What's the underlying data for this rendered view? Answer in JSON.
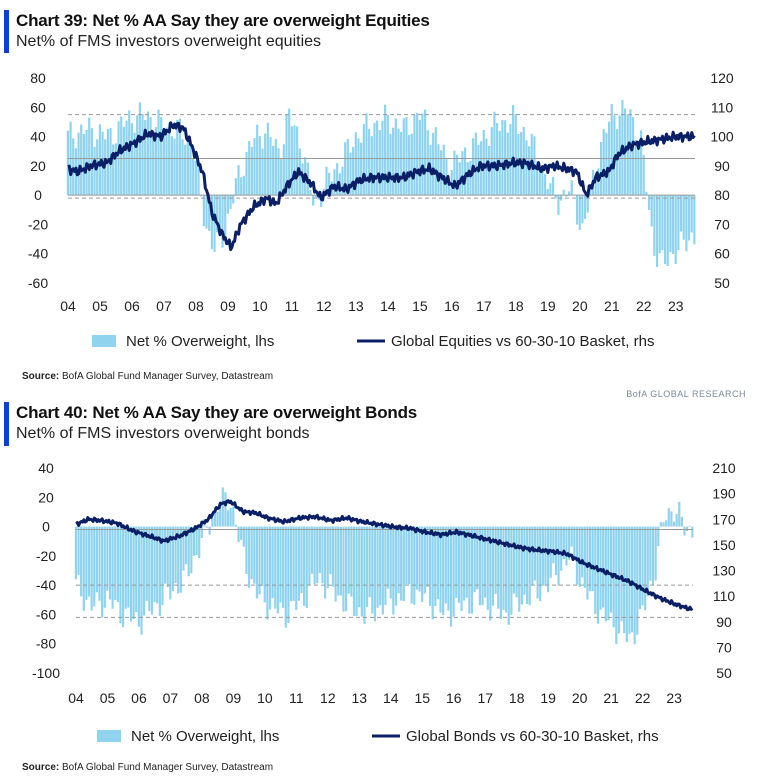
{
  "colors": {
    "bar": "#8fd3ee",
    "line": "#0a1f66",
    "accent": "#0b3fd6",
    "refline": "#9a9a9a"
  },
  "chart_data": [
    {
      "type": "bar+line",
      "title": "Chart 39: Net % AA Say they are overweight Equities",
      "subtitle": "Net% of FMS investors overweight equities",
      "x_ticks": [
        "04",
        "05",
        "06",
        "07",
        "08",
        "09",
        "10",
        "11",
        "12",
        "13",
        "14",
        "15",
        "16",
        "17",
        "18",
        "19",
        "20",
        "21",
        "22",
        "23"
      ],
      "x_range": [
        2004.0,
        2023.6
      ],
      "y_left": {
        "min": -60,
        "max": 80,
        "ticks": [
          "80",
          "60",
          "40",
          "20",
          "0",
          "-20",
          "-40",
          "-60"
        ]
      },
      "y_right": {
        "min": 50,
        "max": 120,
        "ticks": [
          "120",
          "110",
          "100",
          "90",
          "80",
          "70",
          "60",
          "50"
        ]
      },
      "ref_lines_lhs": [
        55,
        25,
        0,
        -2
      ],
      "bars_anchors": [
        [
          2004.0,
          40
        ],
        [
          2004.6,
          45
        ],
        [
          2005.3,
          40
        ],
        [
          2005.9,
          52
        ],
        [
          2006.4,
          55
        ],
        [
          2006.9,
          48
        ],
        [
          2007.4,
          45
        ],
        [
          2007.9,
          35
        ],
        [
          2008.3,
          -20
        ],
        [
          2008.6,
          -38
        ],
        [
          2008.9,
          -25
        ],
        [
          2009.3,
          10
        ],
        [
          2009.7,
          35
        ],
        [
          2010.2,
          45
        ],
        [
          2010.6,
          28
        ],
        [
          2010.9,
          55
        ],
        [
          2011.3,
          35
        ],
        [
          2011.7,
          -8
        ],
        [
          2012.1,
          10
        ],
        [
          2012.6,
          25
        ],
        [
          2013.0,
          40
        ],
        [
          2013.5,
          48
        ],
        [
          2014.0,
          52
        ],
        [
          2014.5,
          45
        ],
        [
          2015.0,
          55
        ],
        [
          2015.5,
          40
        ],
        [
          2015.9,
          20
        ],
        [
          2016.4,
          28
        ],
        [
          2016.9,
          38
        ],
        [
          2017.4,
          48
        ],
        [
          2017.9,
          52
        ],
        [
          2018.4,
          40
        ],
        [
          2018.9,
          15
        ],
        [
          2019.3,
          -5
        ],
        [
          2019.7,
          5
        ],
        [
          2020.1,
          -25
        ],
        [
          2020.6,
          30
        ],
        [
          2021.0,
          55
        ],
        [
          2021.5,
          58
        ],
        [
          2021.9,
          40
        ],
        [
          2022.3,
          -35
        ],
        [
          2022.6,
          -48
        ],
        [
          2022.9,
          -40
        ],
        [
          2023.2,
          -35
        ],
        [
          2023.5,
          -28
        ]
      ],
      "line_anchors": [
        [
          2004.0,
          89
        ],
        [
          2004.3,
          88
        ],
        [
          2004.7,
          90
        ],
        [
          2005.2,
          91
        ],
        [
          2005.6,
          95
        ],
        [
          2006.1,
          98
        ],
        [
          2006.5,
          101
        ],
        [
          2006.9,
          100
        ],
        [
          2007.3,
          104
        ],
        [
          2007.6,
          103
        ],
        [
          2007.9,
          96
        ],
        [
          2008.2,
          88
        ],
        [
          2008.5,
          74
        ],
        [
          2008.8,
          67
        ],
        [
          2009.1,
          62
        ],
        [
          2009.4,
          70
        ],
        [
          2009.8,
          76
        ],
        [
          2010.2,
          79
        ],
        [
          2010.5,
          77
        ],
        [
          2010.9,
          84
        ],
        [
          2011.2,
          88
        ],
        [
          2011.6,
          84
        ],
        [
          2011.9,
          79
        ],
        [
          2012.3,
          83
        ],
        [
          2012.7,
          82
        ],
        [
          2013.1,
          85
        ],
        [
          2013.5,
          86
        ],
        [
          2014.0,
          86
        ],
        [
          2014.5,
          86
        ],
        [
          2014.9,
          88
        ],
        [
          2015.3,
          89
        ],
        [
          2015.7,
          86
        ],
        [
          2016.1,
          83
        ],
        [
          2016.5,
          87
        ],
        [
          2016.9,
          90
        ],
        [
          2017.4,
          90
        ],
        [
          2017.9,
          91
        ],
        [
          2018.3,
          91
        ],
        [
          2018.8,
          89
        ],
        [
          2019.2,
          90
        ],
        [
          2019.6,
          89
        ],
        [
          2019.9,
          88
        ],
        [
          2020.2,
          80
        ],
        [
          2020.5,
          86
        ],
        [
          2020.9,
          88
        ],
        [
          2021.2,
          94
        ],
        [
          2021.6,
          97
        ],
        [
          2022.0,
          98
        ],
        [
          2022.5,
          99
        ],
        [
          2023.0,
          100
        ],
        [
          2023.5,
          100
        ]
      ],
      "legend": {
        "bar": "Net % Overweight, lhs",
        "line": "Global Equities vs 60-30-10 Basket, rhs"
      },
      "source_label": "Source:",
      "source": "BofA Global Fund Manager Survey, Datastream",
      "brand": "BofA GLOBAL RESEARCH"
    },
    {
      "type": "bar+line",
      "title": "Chart 40: Net % AA Say they are overweight Bonds",
      "subtitle": "Net% of FMS investors overweight bonds",
      "x_ticks": [
        "04",
        "05",
        "06",
        "07",
        "08",
        "09",
        "10",
        "11",
        "12",
        "13",
        "14",
        "15",
        "16",
        "17",
        "18",
        "19",
        "20",
        "21",
        "22",
        "23"
      ],
      "x_range": [
        2004.0,
        2023.6
      ],
      "y_left": {
        "min": -100,
        "max": 40,
        "ticks": [
          "40",
          "20",
          "0",
          "-20",
          "-40",
          "-60",
          "-80",
          "-100"
        ]
      },
      "y_right": {
        "min": 50,
        "max": 210,
        "ticks": [
          "210",
          "190",
          "170",
          "150",
          "130",
          "110",
          "90",
          "70",
          "50"
        ]
      },
      "ref_lines_lhs": [
        -2,
        -40,
        -62
      ],
      "bars_anchors": [
        [
          2004.0,
          -40
        ],
        [
          2004.5,
          -55
        ],
        [
          2005.0,
          -50
        ],
        [
          2005.5,
          -60
        ],
        [
          2006.0,
          -65
        ],
        [
          2006.5,
          -55
        ],
        [
          2007.0,
          -45
        ],
        [
          2007.5,
          -35
        ],
        [
          2008.0,
          -10
        ],
        [
          2008.5,
          15
        ],
        [
          2008.9,
          20
        ],
        [
          2009.3,
          -20
        ],
        [
          2009.7,
          -45
        ],
        [
          2010.2,
          -55
        ],
        [
          2010.7,
          -60
        ],
        [
          2011.2,
          -50
        ],
        [
          2011.7,
          -35
        ],
        [
          2012.2,
          -45
        ],
        [
          2012.7,
          -55
        ],
        [
          2013.2,
          -60
        ],
        [
          2013.7,
          -55
        ],
        [
          2014.2,
          -50
        ],
        [
          2014.7,
          -45
        ],
        [
          2015.2,
          -50
        ],
        [
          2015.7,
          -60
        ],
        [
          2016.2,
          -55
        ],
        [
          2016.7,
          -50
        ],
        [
          2017.2,
          -55
        ],
        [
          2017.7,
          -60
        ],
        [
          2018.2,
          -50
        ],
        [
          2018.7,
          -45
        ],
        [
          2019.2,
          -35
        ],
        [
          2019.7,
          -20
        ],
        [
          2020.2,
          -45
        ],
        [
          2020.7,
          -60
        ],
        [
          2021.2,
          -70
        ],
        [
          2021.6,
          -78
        ],
        [
          2022.0,
          -60
        ],
        [
          2022.4,
          -30
        ],
        [
          2022.7,
          8
        ],
        [
          2023.0,
          12
        ],
        [
          2023.4,
          -2
        ]
      ],
      "line_anchors": [
        [
          2004.0,
          166
        ],
        [
          2004.4,
          170
        ],
        [
          2004.8,
          169
        ],
        [
          2005.3,
          167
        ],
        [
          2005.8,
          161
        ],
        [
          2006.3,
          157
        ],
        [
          2006.8,
          153
        ],
        [
          2007.3,
          157
        ],
        [
          2007.8,
          163
        ],
        [
          2008.2,
          170
        ],
        [
          2008.6,
          182
        ],
        [
          2008.9,
          184
        ],
        [
          2009.3,
          176
        ],
        [
          2009.7,
          175
        ],
        [
          2010.1,
          171
        ],
        [
          2010.6,
          168
        ],
        [
          2011.1,
          171
        ],
        [
          2011.6,
          172
        ],
        [
          2012.1,
          169
        ],
        [
          2012.6,
          171
        ],
        [
          2013.1,
          168
        ],
        [
          2013.6,
          166
        ],
        [
          2014.1,
          164
        ],
        [
          2014.6,
          163
        ],
        [
          2015.1,
          160
        ],
        [
          2015.6,
          158
        ],
        [
          2016.1,
          160
        ],
        [
          2016.6,
          157
        ],
        [
          2017.1,
          154
        ],
        [
          2017.6,
          151
        ],
        [
          2018.1,
          148
        ],
        [
          2018.6,
          146
        ],
        [
          2019.1,
          145
        ],
        [
          2019.6,
          143
        ],
        [
          2020.1,
          136
        ],
        [
          2020.6,
          131
        ],
        [
          2021.1,
          126
        ],
        [
          2021.6,
          121
        ],
        [
          2022.1,
          114
        ],
        [
          2022.6,
          108
        ],
        [
          2023.0,
          104
        ],
        [
          2023.5,
          100
        ]
      ],
      "legend": {
        "bar": "Net % Overweight, lhs",
        "line": "Global Bonds vs 60-30-10 Basket, rhs"
      },
      "source_label": "Source:",
      "source": "BofA Global Fund Manager Survey, Datastream"
    }
  ]
}
